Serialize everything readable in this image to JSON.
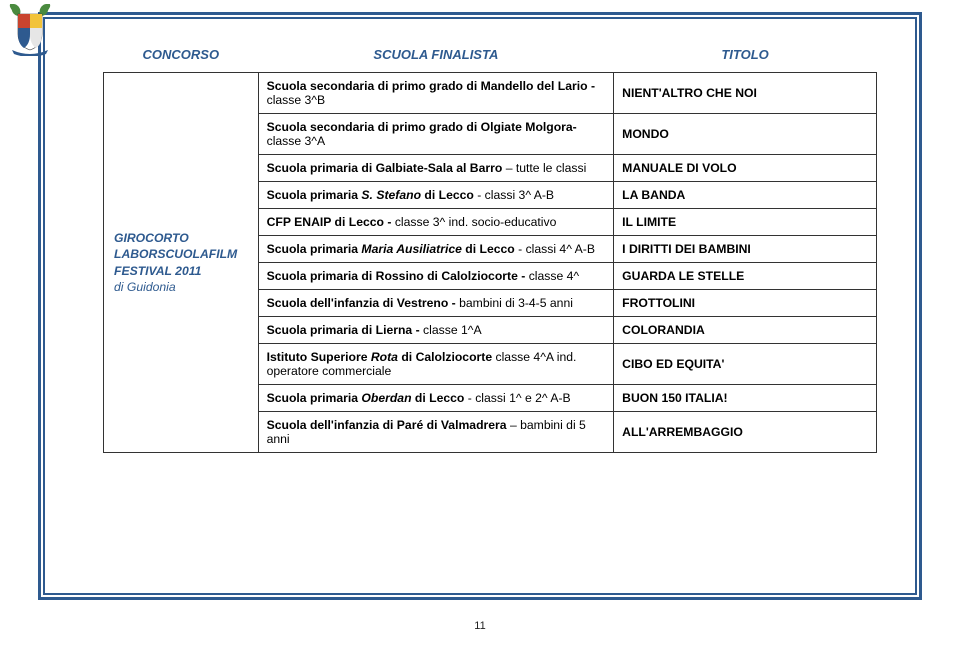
{
  "header": {
    "col1": "CONCORSO",
    "col2": "SCUOLA FINALISTA",
    "col3": "TITOLO"
  },
  "section_label": {
    "line1": "GIROCORTO",
    "line2": "LABORSCUOLAFILM",
    "line3": "FESTIVAL 2011",
    "line4": "di Guidonia"
  },
  "rows": [
    {
      "school_html": "<span class='b'>Scuola secondaria di primo grado di Mandello del Lario - </span>classe 3^B",
      "title": "NIENT'ALTRO CHE NOI"
    },
    {
      "school_html": "<span class='b'>Scuola secondaria di primo grado di Olgiate Molgora- </span>classe 3^A",
      "title": "MONDO"
    },
    {
      "school_html": "<span class='b'>Scuola primaria di Galbiate-Sala al Barro</span> – tutte le classi",
      "title": "MANUALE DI VOLO"
    },
    {
      "school_html": "<span class='b'>Scuola primaria <span class='i'>S. Stefano</span> di Lecco</span> - classi 3^ A-B",
      "title": "LA BANDA"
    },
    {
      "school_html": "<span class='b'>CFP ENAIP di Lecco - </span>classe 3^ ind. socio-educativo",
      "title": "IL LIMITE"
    },
    {
      "school_html": "<span class='b'>Scuola primaria <span class='i'>Maria Ausiliatrice</span> di Lecco</span> - classi 4^ A-B",
      "title": "I DIRITTI DEI BAMBINI"
    },
    {
      "school_html": "<span class='b'>Scuola primaria di Rossino di Calolziocorte - </span>classe 4^",
      "title": "GUARDA LE STELLE"
    },
    {
      "school_html": "<span class='b'>Scuola dell'infanzia di Vestreno - </span>bambini di 3-4-5 anni",
      "title": "FROTTOLINI"
    },
    {
      "school_html": "<span class='b'>Scuola primaria di Lierna - </span>classe 1^A",
      "title": "COLORANDIA"
    },
    {
      "school_html": "<span class='b'>Istituto Superiore <span class='i'>Rota</span> di Calolziocorte </span>classe 4^A ind. operatore commerciale",
      "title": "CIBO ED EQUITA'"
    },
    {
      "school_html": "<span class='b'>Scuola primaria <span class='i'>Oberdan</span> di Lecco</span> - classi 1^ e 2^ A-B",
      "title": "BUON 150 ITALIA!"
    },
    {
      "school_html": "<span class='b'>Scuola dell'infanzia di Paré di Valmadrera</span> – bambini di 5 anni",
      "title": "ALL'ARREMBAGGIO"
    }
  ],
  "page_number": "11",
  "crest_colors": {
    "leaf": "#4a8a3f",
    "shield_tl": "#c9442e",
    "shield_tr": "#f2c33a",
    "shield_bl": "#2e5a8f",
    "shield_br": "#e6e6e6",
    "ribbon": "#2e5a8f"
  }
}
